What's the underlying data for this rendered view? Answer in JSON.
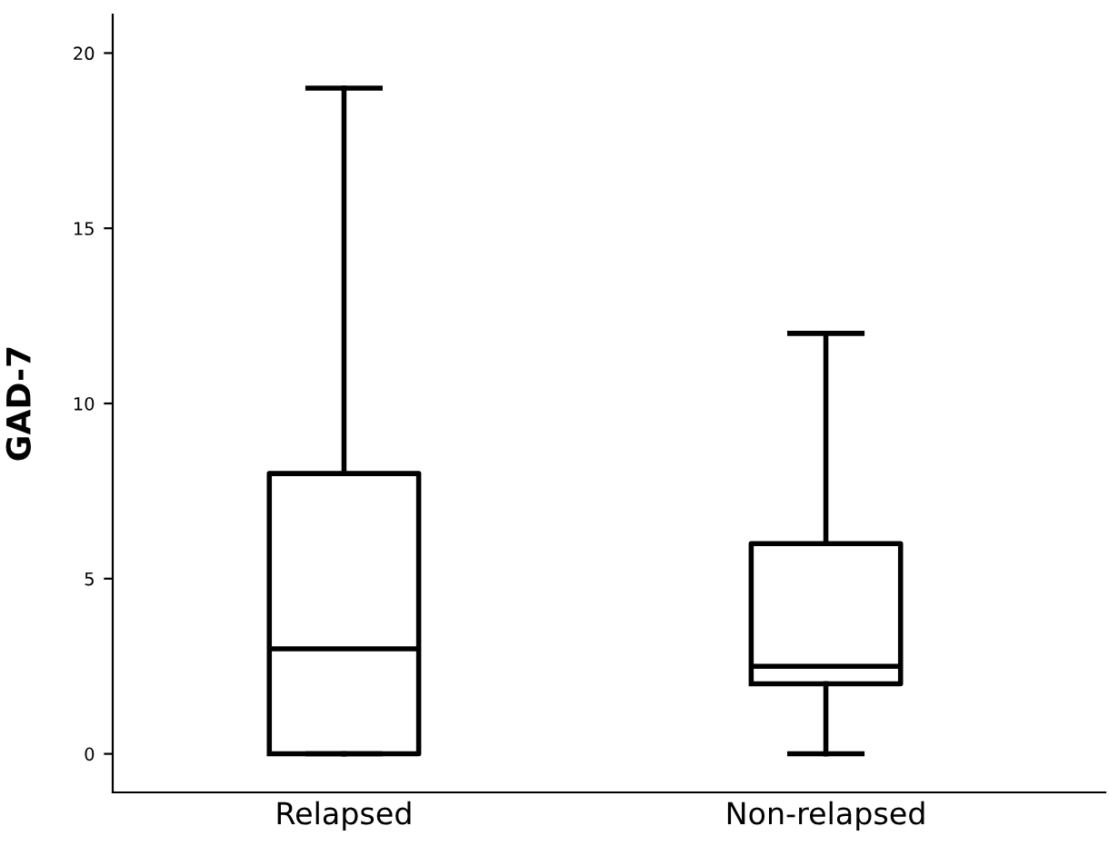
{
  "chart_data": {
    "type": "box",
    "ylabel": "GAD-7",
    "categories": [
      "Relapsed",
      "Non-relapsed"
    ],
    "boxes": [
      {
        "low": 0,
        "q1": 0,
        "median": 3,
        "q3": 8,
        "high": 19
      },
      {
        "low": 0,
        "q1": 2,
        "median": 2.5,
        "q3": 6,
        "high": 12
      }
    ],
    "ylim": [
      -1.1,
      21.1
    ],
    "yticks": [
      0,
      5,
      10,
      15,
      20
    ],
    "grid": false,
    "legend": false
  }
}
